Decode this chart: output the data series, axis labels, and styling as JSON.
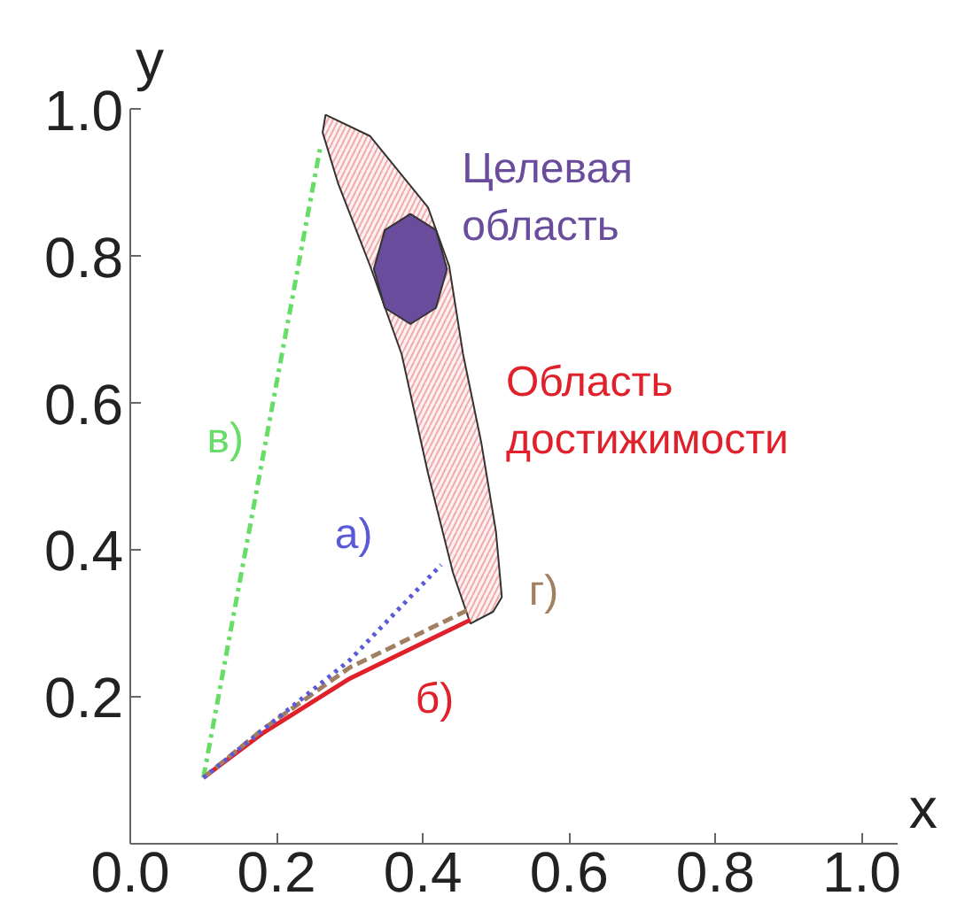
{
  "chart_data": {
    "type": "line",
    "xlabel": "x",
    "ylabel": "y",
    "xlim": [
      0,
      1.05
    ],
    "ylim": [
      0,
      1.0
    ],
    "xticks": [
      {
        "value": 0,
        "label": "0.0"
      },
      {
        "value": 0.2,
        "label": "0.2"
      },
      {
        "value": 0.4,
        "label": "0.4"
      },
      {
        "value": 0.6,
        "label": "0.6"
      },
      {
        "value": 0.8,
        "label": "0.8"
      },
      {
        "value": 1.0,
        "label": "1.0"
      }
    ],
    "yticks": [
      {
        "value": 0.2,
        "label": "0.2"
      },
      {
        "value": 0.4,
        "label": "0.4"
      },
      {
        "value": 0.6,
        "label": "0.6"
      },
      {
        "value": 0.8,
        "label": "0.8"
      },
      {
        "value": 1.0,
        "label": "1.0"
      }
    ],
    "grid": false,
    "series": [
      {
        "type": "area",
        "name": "Область\nдостижимости",
        "color": "#e0202a",
        "x": [
          0.267,
          0.328,
          0.407,
          0.436,
          0.455,
          0.48,
          0.5,
          0.508,
          0.496,
          0.465,
          0.441,
          0.407,
          0.371,
          0.328,
          0.284,
          0.263
        ],
        "values": [
          0.993,
          0.964,
          0.867,
          0.787,
          0.667,
          0.546,
          0.425,
          0.336,
          0.316,
          0.3,
          0.37,
          0.505,
          0.667,
          0.787,
          0.9,
          0.969
        ]
      },
      {
        "type": "area",
        "name": "Целевая\nобласть",
        "color": "#6a4c9c",
        "x": [
          0.383,
          0.418,
          0.433,
          0.418,
          0.383,
          0.348,
          0.333,
          0.348
        ],
        "values": [
          0.858,
          0.836,
          0.783,
          0.73,
          0.708,
          0.73,
          0.783,
          0.836
        ]
      },
      {
        "name": "в)",
        "color": "#66dd66",
        "line_style": "dashdot",
        "x": [
          0.1,
          0.26
        ],
        "values": [
          0.09,
          0.95
        ]
      },
      {
        "name": "а)",
        "color": "#5a5ad8",
        "line_style": "dotted",
        "x": [
          0.1,
          0.2,
          0.3,
          0.425
        ],
        "values": [
          0.09,
          0.17,
          0.25,
          0.38
        ]
      },
      {
        "name": "г)",
        "color": "#a08060",
        "line_style": "dashed",
        "x": [
          0.1,
          0.18,
          0.3,
          0.465
        ],
        "values": [
          0.09,
          0.155,
          0.24,
          0.32
        ]
      },
      {
        "name": "б)",
        "color": "#e0202a",
        "line_style": "solid",
        "x": [
          0.1,
          0.18,
          0.3,
          0.465
        ],
        "values": [
          0.09,
          0.15,
          0.225,
          0.305
        ]
      }
    ]
  }
}
